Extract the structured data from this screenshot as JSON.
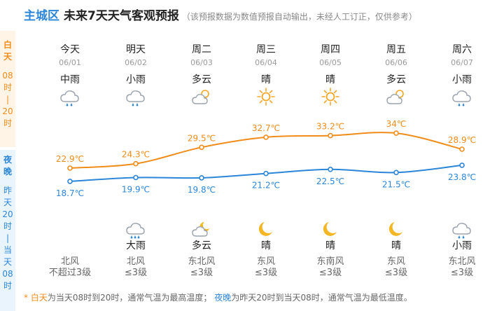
{
  "header": {
    "location": "主城区",
    "title": "未来7天天气客观预报",
    "note": "（该预报数据为数值预报自动输出，未经人工订正，仅供参考）"
  },
  "side_labels": {
    "day": [
      "白",
      "天",
      "08",
      "时",
      "|",
      "20",
      "时"
    ],
    "night": [
      "夜",
      "晚",
      "昨",
      "天",
      "20",
      "时",
      "|",
      "当",
      "天",
      "08",
      "时"
    ]
  },
  "days": [
    {
      "name": "今天",
      "date": "06/01",
      "day_weather": "中雨",
      "day_icon": "rain-icon",
      "night_weather": "",
      "night_icon": "",
      "wind_dir": "北风",
      "wind_level": "不超过3级"
    },
    {
      "name": "明天",
      "date": "06/02",
      "day_weather": "小雨",
      "day_icon": "rain-icon",
      "night_weather": "大雨",
      "night_icon": "heavy-rain-icon",
      "wind_dir": "北风",
      "wind_level": "≤3级"
    },
    {
      "name": "周二",
      "date": "06/03",
      "day_weather": "多云",
      "day_icon": "cloudy-icon",
      "night_weather": "多云",
      "night_icon": "cloudy-night-icon",
      "wind_dir": "东北风",
      "wind_level": "≤3级"
    },
    {
      "name": "周三",
      "date": "06/04",
      "day_weather": "晴",
      "day_icon": "sun-icon",
      "night_weather": "晴",
      "night_icon": "moon-icon",
      "wind_dir": "东风",
      "wind_level": "≤3级"
    },
    {
      "name": "周四",
      "date": "06/05",
      "day_weather": "晴",
      "day_icon": "sun-icon",
      "night_weather": "晴",
      "night_icon": "moon-icon",
      "wind_dir": "东南风",
      "wind_level": "≤3级"
    },
    {
      "name": "周五",
      "date": "06/06",
      "day_weather": "多云",
      "day_icon": "cloudy-icon",
      "night_weather": "晴",
      "night_icon": "moon-icon",
      "wind_dir": "东风",
      "wind_level": "≤3级"
    },
    {
      "name": "周六",
      "date": "06/07",
      "day_weather": "小雨",
      "day_icon": "rain-icon",
      "night_weather": "小雨",
      "night_icon": "rain-icon",
      "wind_dir": "东北风",
      "wind_level": "≤3级"
    }
  ],
  "chart_data": {
    "type": "line",
    "x": [
      "06/01",
      "06/02",
      "06/03",
      "06/04",
      "06/05",
      "06/06",
      "06/07"
    ],
    "series": [
      {
        "values": [
          22.9,
          24.3,
          29.5,
          32.7,
          33.2,
          34,
          28.9
        ],
        "labels": [
          "22.9℃",
          "24.3℃",
          "29.5℃",
          "32.7℃",
          "33.2℃",
          "34℃",
          "28.9℃"
        ],
        "color": "#f08c19"
      },
      {
        "values": [
          18.7,
          19.9,
          19.8,
          21.2,
          22.5,
          21.5,
          23.8
        ],
        "labels": [
          "18.7℃",
          "19.9℃",
          "19.8℃",
          "21.2℃",
          "22.5℃",
          "21.5℃",
          "23.8℃"
        ],
        "color": "#2b86d8"
      }
    ]
  },
  "footer": {
    "bullet": "*",
    "day_term": "白天",
    "day_desc": "为当天08时到20时，通常气温为最高温度；",
    "night_term": "夜晚",
    "night_desc": "为昨天20时到当天08时，通常气温为最低温度。"
  },
  "colors": {
    "day": "#f08c19",
    "night": "#2b86d8"
  }
}
